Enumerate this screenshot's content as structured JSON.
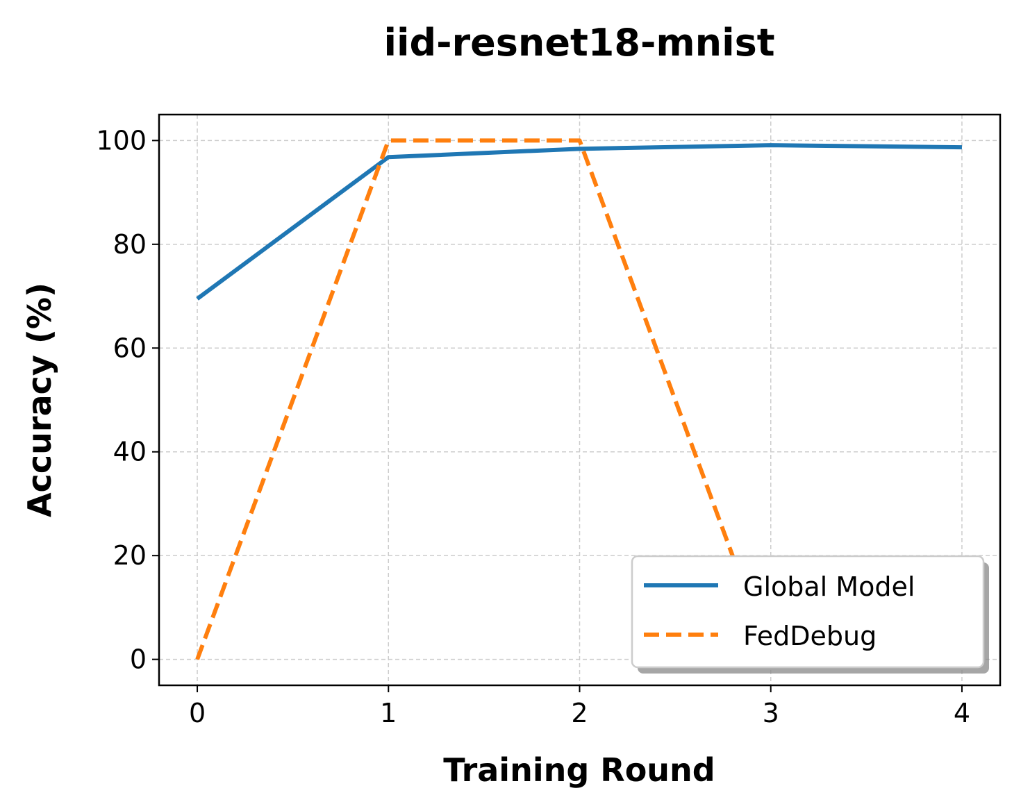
{
  "chart_data": {
    "type": "line",
    "title": "iid-resnet18-mnist",
    "xlabel": "Training Round",
    "ylabel": "Accuracy (%)",
    "x": [
      0,
      1,
      2,
      3,
      4
    ],
    "xticks": [
      "0",
      "1",
      "2",
      "3",
      "4"
    ],
    "yticks": [
      "0",
      "20",
      "40",
      "60",
      "80",
      "100"
    ],
    "xlim": [
      -0.2,
      4.2
    ],
    "ylim": [
      -5,
      105
    ],
    "grid": true,
    "legend_position": "lower-right",
    "series": [
      {
        "name": "Global Model",
        "values": [
          69.5,
          96.8,
          98.4,
          99.1,
          98.7
        ],
        "color": "#1f77b4",
        "style": "solid"
      },
      {
        "name": "FedDebug",
        "values": [
          0,
          100,
          100,
          0,
          0
        ],
        "color": "#ff7f0e",
        "style": "dashed"
      }
    ]
  }
}
